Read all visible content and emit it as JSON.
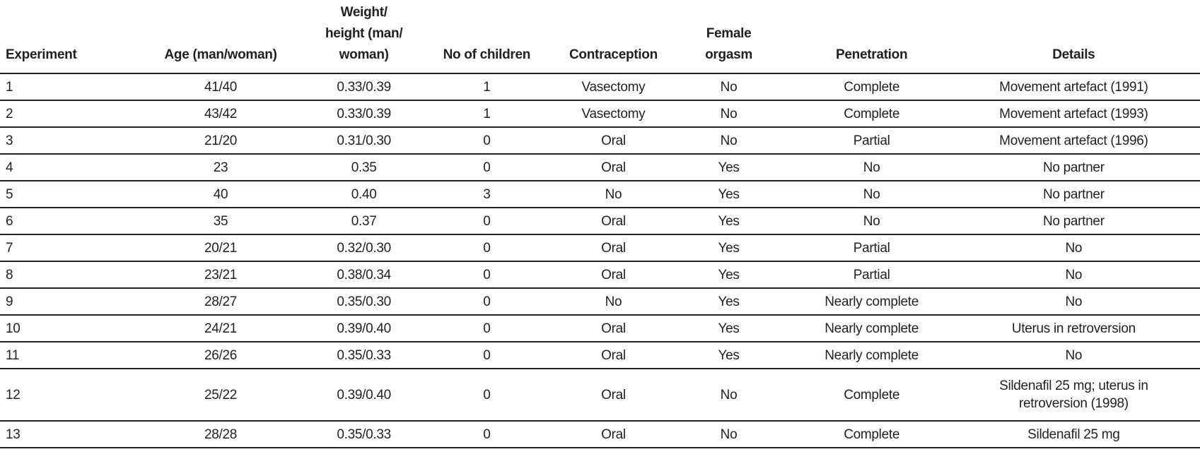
{
  "table": {
    "colors": {
      "text": "#231f20",
      "rule": "#231f20",
      "background": "#ffffff"
    },
    "columns": [
      {
        "label": "Experiment",
        "align": "left"
      },
      {
        "label": "Age (man/woman)",
        "align": "center"
      },
      {
        "label": "Weight/\nheight (man/\nwoman)",
        "align": "center"
      },
      {
        "label": "No of children",
        "align": "center"
      },
      {
        "label": "Contraception",
        "align": "center"
      },
      {
        "label": "Female\norgasm",
        "align": "center"
      },
      {
        "label": "Penetration",
        "align": "center"
      },
      {
        "label": "Details",
        "align": "center"
      }
    ],
    "rows": [
      {
        "cells": [
          "1",
          "41/40",
          "0.33/0.39",
          "1",
          "Vasectomy",
          "No",
          "Complete",
          "Movement artefact (1991)"
        ],
        "tall": false
      },
      {
        "cells": [
          "2",
          "43/42",
          "0.33/0.39",
          "1",
          "Vasectomy",
          "No",
          "Complete",
          "Movement artefact (1993)"
        ],
        "tall": false
      },
      {
        "cells": [
          "3",
          "21/20",
          "0.31/0.30",
          "0",
          "Oral",
          "No",
          "Partial",
          "Movement artefact (1996)"
        ],
        "tall": false
      },
      {
        "cells": [
          "4",
          "23",
          "0.35",
          "0",
          "Oral",
          "Yes",
          "No",
          "No partner"
        ],
        "tall": false
      },
      {
        "cells": [
          "5",
          "40",
          "0.40",
          "3",
          "No",
          "Yes",
          "No",
          "No partner"
        ],
        "tall": false
      },
      {
        "cells": [
          "6",
          "35",
          "0.37",
          "0",
          "Oral",
          "Yes",
          "No",
          "No partner"
        ],
        "tall": false
      },
      {
        "cells": [
          "7",
          "20/21",
          "0.32/0.30",
          "0",
          "Oral",
          "Yes",
          "Partial",
          "No"
        ],
        "tall": false
      },
      {
        "cells": [
          "8",
          "23/21",
          "0.38/0.34",
          "0",
          "Oral",
          "Yes",
          "Partial",
          "No"
        ],
        "tall": false
      },
      {
        "cells": [
          "9",
          "28/27",
          "0.35/0.30",
          "0",
          "No",
          "Yes",
          "Nearly complete",
          "No"
        ],
        "tall": false
      },
      {
        "cells": [
          "10",
          "24/21",
          "0.39/0.40",
          "0",
          "Oral",
          "Yes",
          "Nearly complete",
          "Uterus in retroversion"
        ],
        "tall": false
      },
      {
        "cells": [
          "11",
          "26/26",
          "0.35/0.33",
          "0",
          "Oral",
          "Yes",
          "Nearly complete",
          "No"
        ],
        "tall": false
      },
      {
        "cells": [
          "12",
          "25/22",
          "0.39/0.40",
          "0",
          "Oral",
          "No",
          "Complete",
          "Sildenafil 25 mg; uterus in\nretroversion (1998)"
        ],
        "tall": true
      },
      {
        "cells": [
          "13",
          "28/28",
          "0.35/0.33",
          "0",
          "Oral",
          "No",
          "Complete",
          "Sildenafil 25 mg"
        ],
        "tall": false
      }
    ]
  }
}
